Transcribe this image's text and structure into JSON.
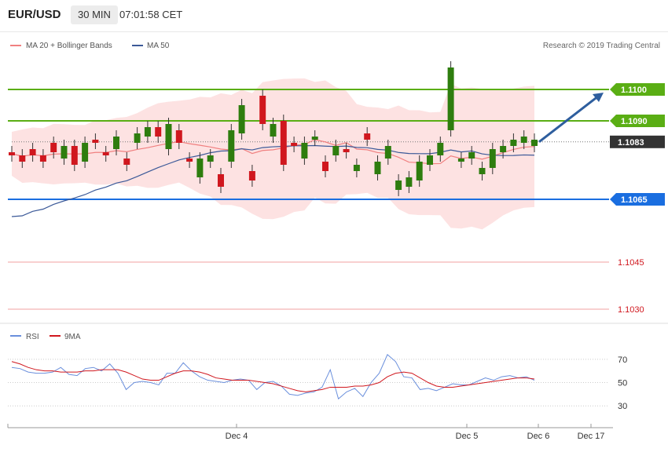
{
  "header": {
    "pair": "EUR/USD",
    "timeframe": "30 MIN",
    "time": "07:01:58 CET"
  },
  "legend": {
    "ma20_label": "MA 20 + Bollinger Bands",
    "ma50_label": "MA 50",
    "credit": "Research © 2019 Trading Central"
  },
  "colors": {
    "up": "#2e7d0e",
    "down": "#d0171e",
    "band_fill": "#fde2e2",
    "ma20": "#f08080",
    "ma50": "#3b5998",
    "resistance": "#5aae14",
    "support": "#1a6ee0",
    "arrow": "#2e5e9e",
    "secondary": "#f0a0a0",
    "current": "#333333",
    "rsi": "#6a8fdc",
    "rsi_ma": "#d0171e"
  },
  "levels": [
    {
      "value": "1.1100",
      "price": 1.11,
      "type": "resistance",
      "color": "#5aae14"
    },
    {
      "value": "1.1090",
      "price": 1.109,
      "type": "resistance",
      "color": "#5aae14"
    },
    {
      "value": "1.1083",
      "price": 1.10833,
      "type": "current",
      "color": "#333333"
    },
    {
      "value": "1.1065",
      "price": 1.1065,
      "type": "support",
      "color": "#1a6ee0"
    },
    {
      "value": "1.1045",
      "price": 1.1045,
      "type": "secondary",
      "color": "#f0a0a0"
    },
    {
      "value": "1.1030",
      "price": 1.103,
      "type": "secondary",
      "color": "#f0a0a0"
    }
  ],
  "rsi_panel": {
    "rsi_label": "RSI",
    "ma_label": "9MA",
    "ticks": [
      "70",
      "50",
      "30"
    ]
  },
  "x_axis": [
    "Dec 4",
    "Dec 5",
    "Dec 6",
    "Dec 17"
  ],
  "chart_data": {
    "type": "candlestick",
    "price_range": [
      1.1026,
      1.1118
    ],
    "up_candles": [
      [
        1.1078,
        1.1082
      ],
      [
        1.1077,
        1.1083
      ],
      [
        1.1081,
        1.1085
      ],
      [
        1.1083,
        1.1086
      ],
      [
        1.1085,
        1.1088
      ],
      [
        1.1081,
        1.1089
      ],
      [
        1.1072,
        1.1078
      ],
      [
        1.1077,
        1.1079
      ],
      [
        1.1077,
        1.1087
      ],
      [
        1.1086,
        1.1095
      ],
      [
        1.1085,
        1.1089
      ],
      [
        1.1078,
        1.1083
      ],
      [
        1.1084,
        1.1085
      ],
      [
        1.1079,
        1.1082
      ],
      [
        1.1074,
        1.1076
      ],
      [
        1.1073,
        1.1077
      ],
      [
        1.1078,
        1.1082
      ],
      [
        1.1068,
        1.1071
      ],
      [
        1.1069,
        1.1072
      ],
      [
        1.1071,
        1.1077
      ],
      [
        1.1076,
        1.1079
      ],
      [
        1.1079,
        1.1083
      ],
      [
        1.1087,
        1.1107
      ],
      [
        1.1077,
        1.1078
      ],
      [
        1.1078,
        1.108
      ],
      [
        1.1073,
        1.1075
      ],
      [
        1.1075,
        1.1081
      ],
      [
        1.108,
        1.1082
      ],
      [
        1.1082,
        1.1084
      ],
      [
        1.1083,
        1.1085
      ],
      [
        1.1082,
        1.1084
      ]
    ],
    "down_candles": [
      [
        1.1079,
        1.108
      ],
      [
        1.1077,
        1.1079
      ],
      [
        1.1079,
        1.1081
      ],
      [
        1.1077,
        1.1079
      ],
      [
        1.108,
        1.1083
      ],
      [
        1.1076,
        1.1082
      ],
      [
        1.1083,
        1.1084
      ],
      [
        1.1079,
        1.108
      ],
      [
        1.1076,
        1.1078
      ],
      [
        1.1085,
        1.1088
      ],
      [
        1.1083,
        1.1087
      ],
      [
        1.1077,
        1.1078
      ],
      [
        1.1069,
        1.1073
      ],
      [
        1.1071,
        1.1074
      ],
      [
        1.1089,
        1.1098
      ],
      [
        1.1076,
        1.109
      ],
      [
        1.1082,
        1.1083
      ],
      [
        1.1074,
        1.1077
      ],
      [
        1.108,
        1.1081
      ],
      [
        1.1084,
        1.1086
      ]
    ],
    "rsi_range": [
      18,
      82
    ],
    "rsi": [
      63,
      62,
      59,
      58,
      58,
      59,
      63,
      57,
      56,
      62,
      63,
      60,
      66,
      58,
      44,
      50,
      51,
      50,
      48,
      58,
      58,
      67,
      60,
      55,
      52,
      51,
      50,
      52,
      53,
      52,
      44,
      50,
      51,
      47,
      40,
      39,
      41,
      42,
      46,
      61,
      36,
      42,
      45,
      38,
      50,
      58,
      74,
      68,
      55,
      54,
      44,
      45,
      43,
      46,
      49,
      48,
      48,
      51,
      54,
      52,
      55,
      56,
      54,
      55,
      52
    ],
    "rsi_ma": [
      68,
      66,
      63,
      61,
      60,
      60,
      59,
      59,
      59,
      60,
      60,
      61,
      61,
      61,
      59,
      56,
      53,
      52,
      52,
      55,
      58,
      60,
      60,
      59,
      57,
      54,
      53,
      52,
      52,
      52,
      51,
      50,
      49,
      47,
      45,
      43,
      42,
      43,
      44,
      46,
      46,
      46,
      47,
      47,
      48,
      50,
      55,
      58,
      59,
      58,
      54,
      50,
      47,
      46,
      46,
      47,
      48,
      49,
      50,
      51,
      52,
      53,
      54,
      54,
      53
    ]
  }
}
